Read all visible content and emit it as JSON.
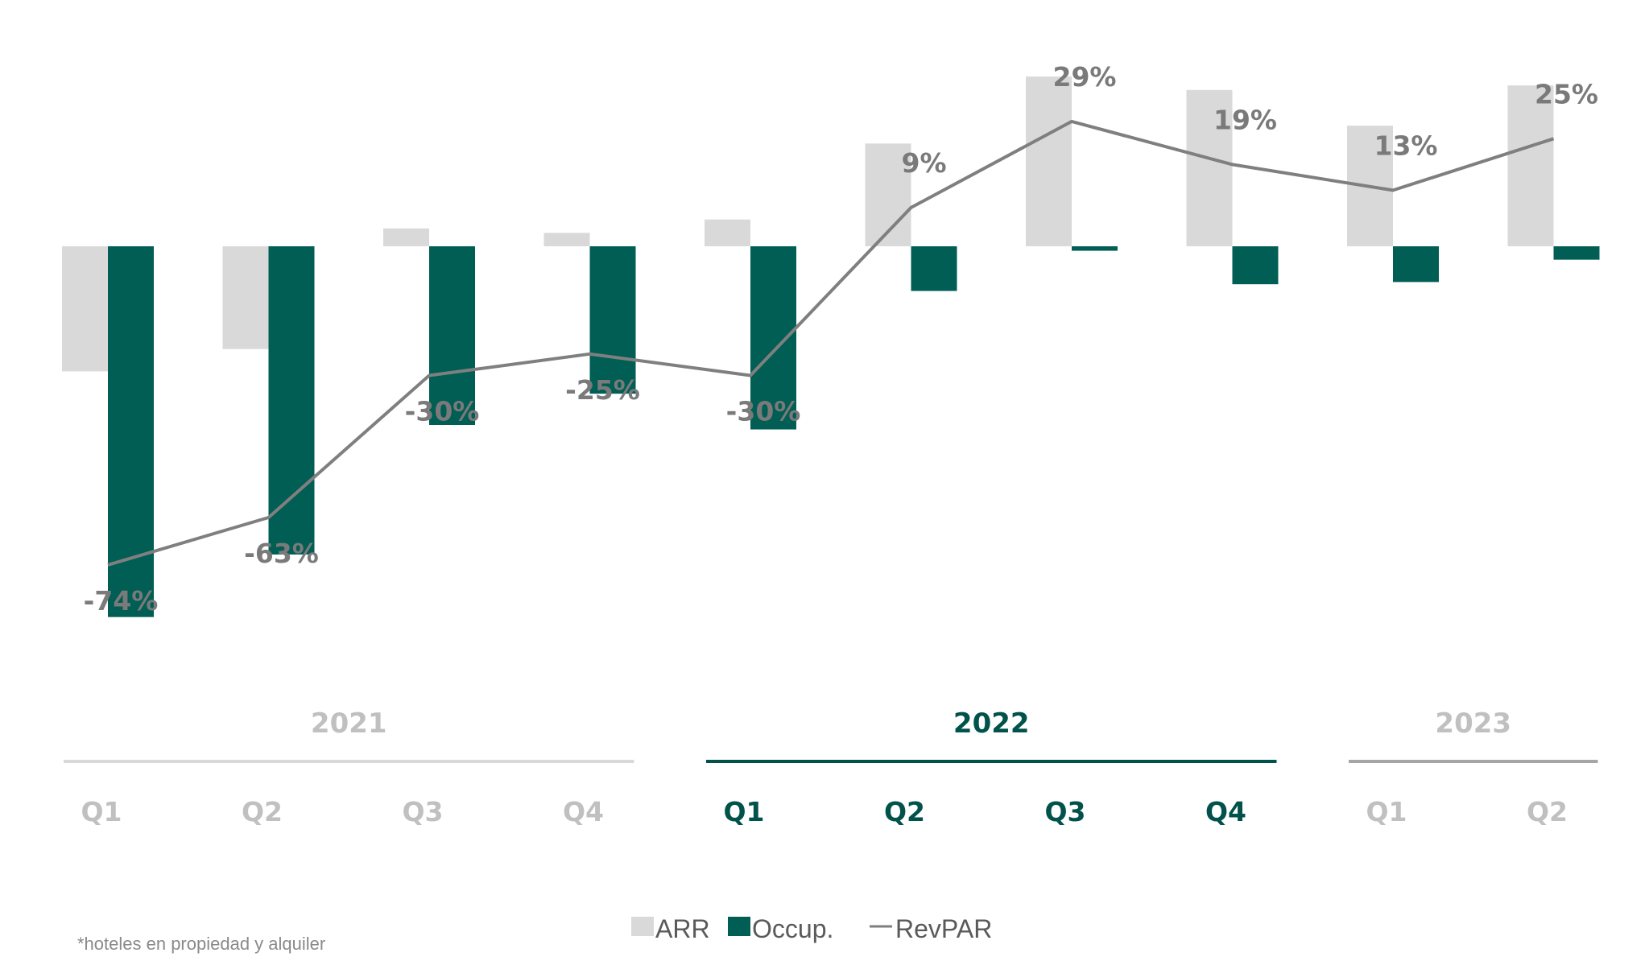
{
  "chart_data": {
    "type": "bar",
    "categories": [
      "2021 Q1",
      "2021 Q2",
      "2021 Q3",
      "2021 Q4",
      "2022 Q1",
      "2022 Q2",
      "2022 Q3",
      "2022 Q4",
      "2023 Q1",
      "2023 Q2"
    ],
    "series": [
      {
        "name": "ARR",
        "type": "bar",
        "color": "#d9d9d9",
        "values": [
          -28,
          -23,
          4,
          3,
          6,
          23,
          38,
          35,
          27,
          36
        ]
      },
      {
        "name": "Occup.",
        "type": "bar",
        "color": "#005e54",
        "values": [
          -83,
          -69,
          -40,
          -33,
          -41,
          -10,
          -1,
          -8.5,
          -8,
          -3
        ]
      },
      {
        "name": "RevPAR",
        "type": "line",
        "color": "#7f7f7f",
        "values": [
          -74,
          -63,
          -30,
          -25,
          -30,
          9,
          29,
          19,
          13,
          25
        ]
      }
    ],
    "data_labels": [
      "-74%",
      "-63%",
      "-30%",
      "-25%",
      "-30%",
      "9%",
      "29%",
      "19%",
      "13%",
      "25%"
    ],
    "groups": [
      {
        "label": "2021",
        "quarters": [
          "Q1",
          "Q2",
          "Q3",
          "Q4"
        ],
        "color": "#c0c0c0",
        "line_color": "#d9d9d9"
      },
      {
        "label": "2022",
        "quarters": [
          "Q1",
          "Q2",
          "Q3",
          "Q4"
        ],
        "color": "#00524b",
        "line_color": "#00524b"
      },
      {
        "label": "2023",
        "quarters": [
          "Q1",
          "Q2"
        ],
        "color": "#c0c0c0",
        "line_color": "#a6a6a6"
      }
    ],
    "legend": [
      "ARR",
      "Occup.",
      "RevPAR"
    ],
    "legend_position": "bottom-center",
    "grid": false
  },
  "footnote": "*hoteles en propiedad y alquiler"
}
